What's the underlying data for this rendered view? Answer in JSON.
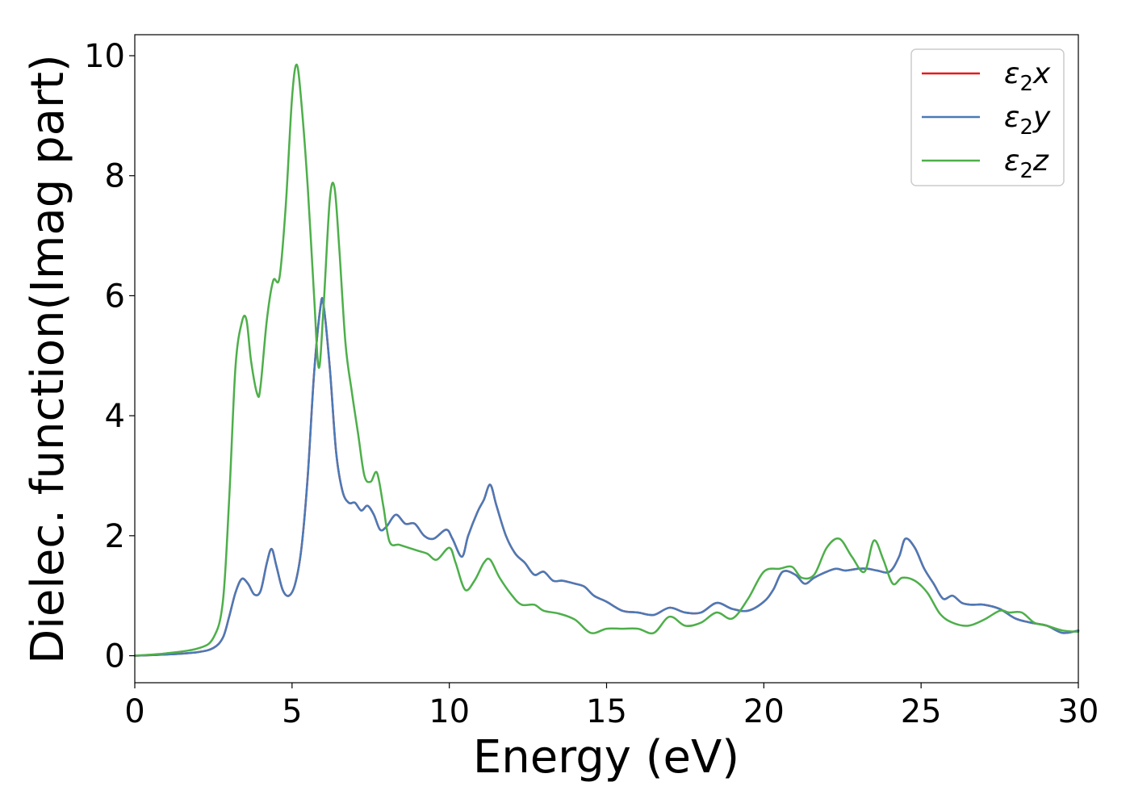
{
  "chart_data": {
    "type": "line",
    "xlabel": "Energy (eV)",
    "ylabel": "Dielec. function(Imag part)",
    "xlim": [
      0,
      30
    ],
    "ylim": [
      -0.45,
      10.35
    ],
    "xticks": [
      0,
      5,
      10,
      15,
      20,
      25,
      30
    ],
    "yticks": [
      0,
      2,
      4,
      6,
      8,
      10
    ],
    "grid": false,
    "legend_position": "top-right",
    "series": [
      {
        "name": "ε₂x",
        "label_base": "ε",
        "label_sub": "2",
        "label_var": "x",
        "color": "#e41a1c",
        "x": [
          0,
          1,
          2,
          2.5,
          2.8,
          3.0,
          3.2,
          3.4,
          3.6,
          3.8,
          4.0,
          4.2,
          4.35,
          4.5,
          4.7,
          4.9,
          5.1,
          5.3,
          5.5,
          5.7,
          5.9,
          6.0,
          6.2,
          6.4,
          6.6,
          6.8,
          7.0,
          7.2,
          7.4,
          7.6,
          7.8,
          8.0,
          8.3,
          8.6,
          8.9,
          9.2,
          9.5,
          9.9,
          10.1,
          10.4,
          10.6,
          10.9,
          11.1,
          11.3,
          11.5,
          11.8,
          12.1,
          12.4,
          12.7,
          13.0,
          13.3,
          13.6,
          14.0,
          14.3,
          14.6,
          15.0,
          15.5,
          16.0,
          16.5,
          17.0,
          17.5,
          18.0,
          18.5,
          19.0,
          19.5,
          20.0,
          20.3,
          20.6,
          21.0,
          21.3,
          21.6,
          22.0,
          22.3,
          22.6,
          23.0,
          23.3,
          23.6,
          24.0,
          24.3,
          24.5,
          24.8,
          25.1,
          25.4,
          25.7,
          26.0,
          26.3,
          26.6,
          27.0,
          27.5,
          28.0,
          28.5,
          29.0,
          29.5,
          30.0
        ],
        "y": [
          0.0,
          0.02,
          0.06,
          0.13,
          0.3,
          0.65,
          1.05,
          1.28,
          1.2,
          1.02,
          1.08,
          1.55,
          1.78,
          1.5,
          1.1,
          1.0,
          1.2,
          1.8,
          3.0,
          4.7,
          5.8,
          5.85,
          4.8,
          3.4,
          2.75,
          2.55,
          2.55,
          2.42,
          2.5,
          2.35,
          2.1,
          2.15,
          2.35,
          2.2,
          2.2,
          2.0,
          1.95,
          2.1,
          1.95,
          1.65,
          2.0,
          2.4,
          2.6,
          2.85,
          2.5,
          2.0,
          1.7,
          1.55,
          1.35,
          1.4,
          1.25,
          1.25,
          1.2,
          1.15,
          1.0,
          0.9,
          0.75,
          0.72,
          0.68,
          0.8,
          0.72,
          0.72,
          0.88,
          0.78,
          0.75,
          0.9,
          1.1,
          1.4,
          1.35,
          1.2,
          1.3,
          1.4,
          1.45,
          1.42,
          1.45,
          1.45,
          1.42,
          1.4,
          1.65,
          1.95,
          1.8,
          1.45,
          1.2,
          0.95,
          1.0,
          0.88,
          0.85,
          0.85,
          0.78,
          0.62,
          0.55,
          0.5,
          0.38,
          0.42
        ]
      },
      {
        "name": "ε₂y",
        "label_base": "ε",
        "label_sub": "2",
        "label_var": "y",
        "color": "#4a7ab7",
        "x": [
          0,
          1,
          2,
          2.5,
          2.8,
          3.0,
          3.2,
          3.4,
          3.6,
          3.8,
          4.0,
          4.2,
          4.35,
          4.5,
          4.7,
          4.9,
          5.1,
          5.3,
          5.5,
          5.7,
          5.9,
          6.0,
          6.2,
          6.4,
          6.6,
          6.8,
          7.0,
          7.2,
          7.4,
          7.6,
          7.8,
          8.0,
          8.3,
          8.6,
          8.9,
          9.2,
          9.5,
          9.9,
          10.1,
          10.4,
          10.6,
          10.9,
          11.1,
          11.3,
          11.5,
          11.8,
          12.1,
          12.4,
          12.7,
          13.0,
          13.3,
          13.6,
          14.0,
          14.3,
          14.6,
          15.0,
          15.5,
          16.0,
          16.5,
          17.0,
          17.5,
          18.0,
          18.5,
          19.0,
          19.5,
          20.0,
          20.3,
          20.6,
          21.0,
          21.3,
          21.6,
          22.0,
          22.3,
          22.6,
          23.0,
          23.3,
          23.6,
          24.0,
          24.3,
          24.5,
          24.8,
          25.1,
          25.4,
          25.7,
          26.0,
          26.3,
          26.6,
          27.0,
          27.5,
          28.0,
          28.5,
          29.0,
          29.5,
          30.0
        ],
        "y": [
          0.0,
          0.02,
          0.06,
          0.13,
          0.3,
          0.65,
          1.05,
          1.28,
          1.2,
          1.02,
          1.08,
          1.55,
          1.78,
          1.5,
          1.1,
          1.0,
          1.2,
          1.8,
          3.0,
          4.7,
          5.8,
          5.85,
          4.8,
          3.4,
          2.75,
          2.55,
          2.55,
          2.42,
          2.5,
          2.35,
          2.1,
          2.15,
          2.35,
          2.2,
          2.2,
          2.0,
          1.95,
          2.1,
          1.95,
          1.65,
          2.0,
          2.4,
          2.6,
          2.85,
          2.5,
          2.0,
          1.7,
          1.55,
          1.35,
          1.4,
          1.25,
          1.25,
          1.2,
          1.15,
          1.0,
          0.9,
          0.75,
          0.72,
          0.68,
          0.8,
          0.72,
          0.72,
          0.88,
          0.78,
          0.75,
          0.9,
          1.1,
          1.4,
          1.35,
          1.2,
          1.3,
          1.4,
          1.45,
          1.42,
          1.45,
          1.45,
          1.42,
          1.4,
          1.65,
          1.95,
          1.8,
          1.45,
          1.2,
          0.95,
          1.0,
          0.88,
          0.85,
          0.85,
          0.78,
          0.62,
          0.55,
          0.5,
          0.38,
          0.42
        ]
      },
      {
        "name": "ε₂z",
        "label_base": "ε",
        "label_sub": "2",
        "label_var": "z",
        "color": "#4daf4a",
        "x": [
          0,
          1,
          2,
          2.5,
          2.8,
          3.0,
          3.2,
          3.4,
          3.55,
          3.7,
          3.9,
          4.0,
          4.2,
          4.4,
          4.6,
          4.8,
          5.0,
          5.15,
          5.3,
          5.5,
          5.7,
          5.85,
          6.0,
          6.2,
          6.35,
          6.5,
          6.7,
          6.9,
          7.1,
          7.3,
          7.5,
          7.7,
          7.9,
          8.1,
          8.4,
          8.7,
          9.0,
          9.3,
          9.6,
          10.0,
          10.2,
          10.5,
          10.8,
          11.1,
          11.3,
          11.6,
          12.0,
          12.3,
          12.7,
          13.0,
          13.5,
          14.0,
          14.5,
          15.0,
          15.5,
          16.0,
          16.5,
          17.0,
          17.5,
          18.0,
          18.5,
          19.0,
          19.5,
          20.0,
          20.5,
          20.9,
          21.2,
          21.6,
          22.0,
          22.4,
          22.8,
          23.2,
          23.5,
          23.8,
          24.1,
          24.4,
          24.8,
          25.2,
          25.6,
          26.0,
          26.5,
          27.0,
          27.5,
          27.8,
          28.2,
          28.6,
          29.0,
          29.5,
          30.0
        ],
        "y": [
          0.0,
          0.04,
          0.12,
          0.3,
          0.9,
          2.6,
          4.8,
          5.55,
          5.6,
          4.9,
          4.35,
          4.5,
          5.6,
          6.25,
          6.3,
          7.5,
          9.3,
          9.85,
          9.2,
          7.8,
          6.0,
          4.8,
          5.8,
          7.6,
          7.8,
          6.8,
          5.2,
          4.4,
          3.7,
          3.0,
          2.9,
          3.05,
          2.5,
          1.9,
          1.85,
          1.8,
          1.75,
          1.7,
          1.6,
          1.8,
          1.55,
          1.1,
          1.25,
          1.55,
          1.6,
          1.3,
          1.0,
          0.85,
          0.85,
          0.75,
          0.7,
          0.6,
          0.38,
          0.45,
          0.45,
          0.45,
          0.38,
          0.65,
          0.5,
          0.55,
          0.72,
          0.62,
          0.95,
          1.4,
          1.45,
          1.48,
          1.3,
          1.35,
          1.8,
          1.95,
          1.65,
          1.4,
          1.92,
          1.6,
          1.2,
          1.3,
          1.25,
          1.05,
          0.7,
          0.55,
          0.5,
          0.6,
          0.75,
          0.72,
          0.72,
          0.55,
          0.5,
          0.42,
          0.4
        ]
      }
    ]
  }
}
